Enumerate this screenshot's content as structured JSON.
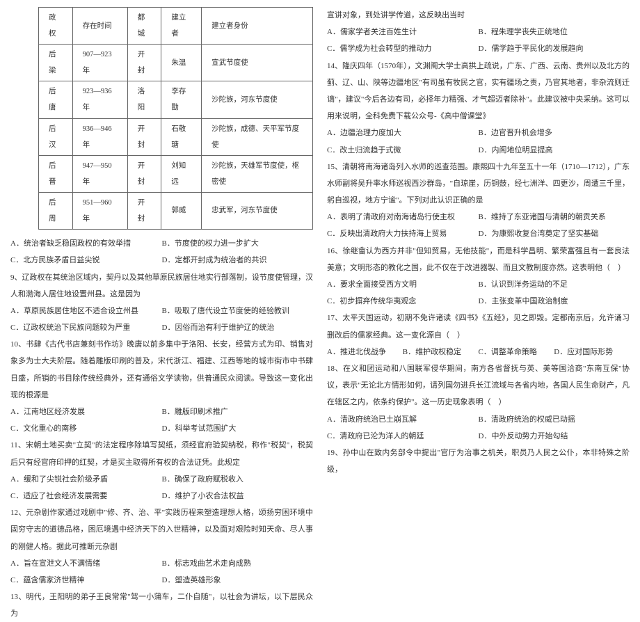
{
  "table": {
    "headers": [
      "政权",
      "存在时间",
      "都城",
      "建立者",
      "建立者身份"
    ],
    "rows": [
      [
        "后梁",
        "907—923 年",
        "开封",
        "朱温",
        "宣武节度使"
      ],
      [
        "后唐",
        "923—936 年",
        "洛阳",
        "李存勖",
        "沙陀族，河东节度使"
      ],
      [
        "后汉",
        "936—946 年",
        "开封",
        "石敬瑭",
        "沙陀族，成德、天平军节度使"
      ],
      [
        "后晋",
        "947—950 年",
        "开封",
        "刘知远",
        "沙陀族，天雄军节度使，枢密使"
      ],
      [
        "后周",
        "951—960 年",
        "开封",
        "郭威",
        "忠武军，河东节度使"
      ]
    ]
  },
  "q8_opts": {
    "a": "A．统治者缺乏稳固政权的有效举措",
    "b": "B．节度使的权力进一步扩大",
    "c": "C．北方民族矛盾日益尖锐",
    "d": "D．定都开封成为统治者的共识"
  },
  "q9": "9、辽政权在其统治区域内，契丹以及其他草原民族居住地实行部落制，设节度使管理，汉人和渤海人居住地设置州县。这是因为",
  "q9_opts": {
    "a": "A．草原民族居住地区不适合设立州县",
    "b": "B．吸取了唐代设立节度使的经验教训",
    "c": "C．辽政权统治下民族问题较为严重",
    "d": "D．因俗而治有利于维护辽的统治"
  },
  "q10": "10、书肆《古代书店兼刻书作坊》晚唐以前多集中于洛阳、长安，经营方式为印、销售对象多为士大夫阶层。随着雕版印刷的普及，宋代浙江、福建、江西等地的城市街市中书肆日盛，所销的书目除传统经典外，还有通俗文学读物，供普通民众阅读。导致这一变化出现的根源是",
  "q10_opts": {
    "a": "A．江南地区经济发展",
    "b": "B．雕版印刷术推广",
    "c": "C．文化重心的南移",
    "d": "D．科举考试范围扩大"
  },
  "q11": "11、宋朝土地买卖\"立契\"的法定程序除填写契纸，须经官府验契纳税，称作\"税契\"，税契后只有经官府印押的红契，才是买主取得所有权的合法证凭。此规定",
  "q11_opts": {
    "a": "A．缓和了尖锐社会阶级矛盾",
    "b": "B．确保了政府赋税收入",
    "c": "C．适应了社会经济发展需要",
    "d": "D．维护了小农合法权益"
  },
  "q12": "12、元杂剧作家通过戏剧中\"修、齐、治、平\"实践历程来塑造理想人格，颂扬穷困环境中固穷守志的道德品格，困厄境遇中经济天下的入世精神，以及面对艰险时知天命、尽人事的刚健人格。据此可推断元杂剧",
  "q12_opts": {
    "a": "A．旨在宣泄文人不满情绪",
    "b": "B．标志戏曲艺术走向成熟",
    "c": "C．蕴含儒家济世精神",
    "d": "D．塑造英雄形象"
  },
  "q13": "13、明代，王阳明的弟子王良常常\"驾一小蒲车，二仆自随\"，以社会为讲坛，以下层民众为",
  "r1": "宣讲对象，到处讲学传道，这反映出当时",
  "r1_opts": {
    "a": "A．儒家学者关注百姓生计",
    "b": "B．程朱理学丧失正统地位",
    "c": "C．儒学成为社会转型的推动力",
    "d": "D．儒学趋于平民化的发展趋向"
  },
  "q14": "14、隆庆四年（1570年），文渊阁大学士高拱上疏说，广东、广西、云南、贵州以及北方的蓟、辽、山、陕等边疆地区\"有司虽有牧民之官，实有疆场之责，乃官其地者，非杂流则迁谪\"，建议\"今后各边有司，必择年力精强、才气超迈者除补\"。此建议被中央采纳。这可以用来说明，全科免费下载公众号-《高中僧课堂》",
  "q14_opts": {
    "a": "A．边疆治理力度加大",
    "b": "B．边官晋升机会增多",
    "c": "C．改土归流趋于式微",
    "d": "D．内阁地位明显提高"
  },
  "q15": "15、清朝将南海诸岛列入水师的巡查范围。康熙四十九年至五十一年（1710—1712），广东水师副将吴升率水师巡视西沙群岛，\"自琼崖，历铜鼓，经七洲洋、四更沙，周遭三千里，躬自巡视，地方宁谧\"。下列对此认识正确的是",
  "q15_opts": {
    "a": "A．表明了清政府对南海诸岛行使主权",
    "b": "B．维持了东亚诸国与清朝的朝贡关系",
    "c": "C．反映出清政府大力扶持海上贸易",
    "d": "D．为康熙收复台湾奠定了坚实基础"
  },
  "q16": "16、徐继畬认为西方并非\"但知贸易，无他技能\"，而是科学昌明、繁荣富强且有一套良法美意；文明形态的教化之国，此不仅在于改进器製、而且文教制度亦然。这表明他（　）",
  "q16_opts": {
    "a": "A．要求全面接受西方文明",
    "b": "B．认识到洋务运动的不足",
    "c": "C．初步摒弃传统华夷观念",
    "d": "D．主张变革中国政治制度"
  },
  "q17": "17、太平天国运动，初期不免许诸读《四书》《五经》，见之即毁。定都南京后，允许诵习删改后的儒家经典。这一变化源自（　）",
  "q17_opts": {
    "a": "A．推进北伐战争",
    "b": "B．维护政权稳定",
    "c": "C．调整革命策略",
    "d": "D．应对国际形势"
  },
  "q18": "18、在义和团运动和八国联军侵华期间，南方各省督抚与英、美等国洽商\"东南互保\"协议，表示\"无论北方情形如何，请列国勿进兵长江流域与各省内地，各国人民生命财产，凡在辖区之内，依条约保护\"。这一历史现象表明（　）",
  "q18_opts": {
    "a": "A．清政府统治已土崩瓦解",
    "b": "B．清政府统治的权威已动摇",
    "c": "C．清政府已沦为洋人的朝廷",
    "d": "D．中外反动势力开始勾结"
  },
  "q19": "19、孙中山在致内务部令中提出\"官厅为治事之机关，职员乃人民之公仆，本非特殊之阶级，"
}
